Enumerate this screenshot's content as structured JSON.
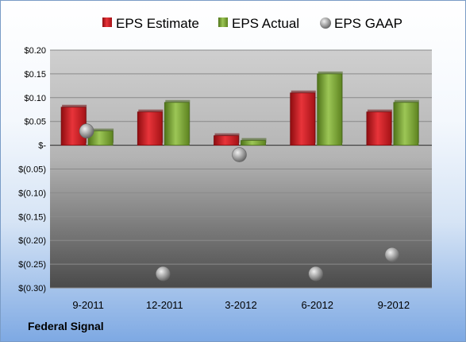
{
  "footer": {
    "company": "Federal Signal"
  },
  "colors": {
    "estimate": "#c8181e",
    "actual": "#79a333",
    "gaap": "#9a9a9a"
  },
  "chart_data": {
    "type": "bar",
    "title": "",
    "xlabel": "",
    "ylabel": "",
    "categories": [
      "9-2011",
      "12-2011",
      "3-2012",
      "6-2012",
      "9-2012"
    ],
    "series": [
      {
        "name": "EPS Estimate",
        "kind": "bar",
        "values": [
          0.08,
          0.07,
          0.02,
          0.11,
          0.07
        ]
      },
      {
        "name": "EPS Actual",
        "kind": "bar",
        "values": [
          0.03,
          0.09,
          0.01,
          0.15,
          0.09
        ]
      },
      {
        "name": "EPS GAAP",
        "kind": "scatter",
        "values": [
          0.03,
          -0.27,
          -0.02,
          -0.27,
          -0.23
        ]
      }
    ],
    "ylim": [
      -0.3,
      0.2
    ],
    "yticks": [
      {
        "value": 0.2,
        "label": "$0.20"
      },
      {
        "value": 0.15,
        "label": "$0.15"
      },
      {
        "value": 0.1,
        "label": "$0.10"
      },
      {
        "value": 0.05,
        "label": "$0.05"
      },
      {
        "value": 0,
        "label": "$-"
      },
      {
        "value": -0.05,
        "label": "$(0.05)"
      },
      {
        "value": -0.1,
        "label": "$(0.10)"
      },
      {
        "value": -0.15,
        "label": "$(0.15)"
      },
      {
        "value": -0.2,
        "label": "$(0.20)"
      },
      {
        "value": -0.25,
        "label": "$(0.25)"
      },
      {
        "value": -0.3,
        "label": "$(0.30)"
      }
    ],
    "grid": true,
    "legend": "top"
  }
}
